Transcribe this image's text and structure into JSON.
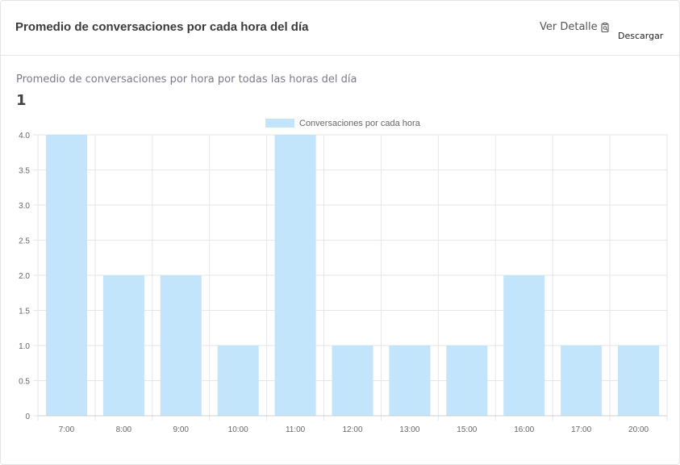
{
  "card": {
    "title": "Promedio de conversaciones por cada hora del día",
    "ver_detalle_label": "Ver Detalle",
    "descargar_label": "Descargar",
    "subtitle": "Promedio de conversaciones por hora por todas las horas del día",
    "value": "1"
  },
  "icons": {
    "ver_detalle": "clipboard-search-icon"
  },
  "colors": {
    "bar_fill": "#c2e5fc",
    "grid": "#e6e6e6",
    "axis_text": "#666666"
  },
  "chart_data": {
    "type": "bar",
    "legend": "Conversaciones por cada hora",
    "legend_position": "top",
    "categories": [
      "7:00",
      "8:00",
      "9:00",
      "10:00",
      "11:00",
      "12:00",
      "13:00",
      "15:00",
      "16:00",
      "17:00",
      "20:00"
    ],
    "series": [
      {
        "name": "Conversaciones por cada hora",
        "values": [
          4,
          2,
          2,
          1,
          4,
          1,
          1,
          1,
          2,
          1,
          1
        ]
      }
    ],
    "ylim": [
      0,
      4
    ],
    "yticks": [
      "0",
      "0.5",
      "1.0",
      "1.5",
      "2.0",
      "2.5",
      "3.0",
      "3.5",
      "4.0"
    ],
    "grid": true
  }
}
